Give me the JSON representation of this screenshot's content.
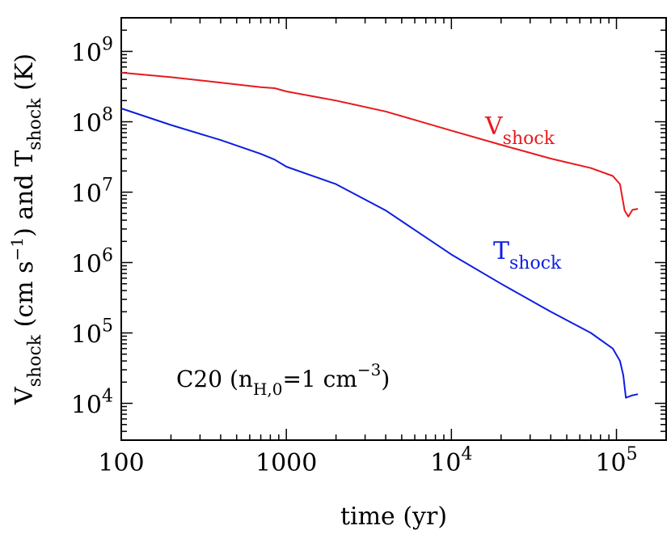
{
  "chart_data": {
    "type": "line",
    "xscale": "log",
    "yscale": "log",
    "xlim": [
      100,
      200000
    ],
    "ylim": [
      3000,
      3000000000
    ],
    "xlabel": "time (yr)",
    "ylabel": {
      "v_symbol": "V",
      "shock_sub": "shock",
      "units": "(cm s",
      "units_exp": "−1",
      "mid": ") and T",
      "t_sub": "shock",
      "tail": "(K)"
    },
    "x_ticks": [
      {
        "value": 100,
        "label": "100"
      },
      {
        "value": 1000,
        "label": "1000"
      },
      {
        "value": 10000,
        "base": "10",
        "exp": "4"
      },
      {
        "value": 100000,
        "base": "10",
        "exp": "5"
      }
    ],
    "y_ticks": [
      {
        "value": 10000,
        "base": "10",
        "exp": "4"
      },
      {
        "value": 100000,
        "base": "10",
        "exp": "5"
      },
      {
        "value": 1000000,
        "base": "10",
        "exp": "6"
      },
      {
        "value": 10000000,
        "base": "10",
        "exp": "7"
      },
      {
        "value": 100000000,
        "base": "10",
        "exp": "8"
      },
      {
        "value": 1000000000,
        "base": "10",
        "exp": "9"
      }
    ],
    "annotation": {
      "model": "C20",
      "open": "(n",
      "sub": "H,0",
      "eq": "=1 cm",
      "exp": "−3",
      "close": ")"
    },
    "series": [
      {
        "name": "V",
        "name_sub": "shock",
        "color": "#e8191c",
        "points": [
          [
            100,
            500000000
          ],
          [
            200,
            430000000
          ],
          [
            400,
            360000000
          ],
          [
            700,
            310000000
          ],
          [
            850,
            300000000
          ],
          [
            1000,
            270000000
          ],
          [
            2000,
            200000000
          ],
          [
            4000,
            140000000
          ],
          [
            10000,
            75000000
          ],
          [
            20000,
            47000000
          ],
          [
            40000,
            30000000
          ],
          [
            70000,
            22000000
          ],
          [
            95000,
            17000000
          ],
          [
            105000,
            13000000
          ],
          [
            112000,
            5500000
          ],
          [
            118000,
            4500000
          ],
          [
            125000,
            5600000
          ],
          [
            135000,
            5800000
          ]
        ]
      },
      {
        "name": "T",
        "name_sub": "shock",
        "color": "#0e1ee0",
        "points": [
          [
            100,
            155000000
          ],
          [
            200,
            90000000
          ],
          [
            400,
            55000000
          ],
          [
            700,
            35000000
          ],
          [
            850,
            29000000
          ],
          [
            1000,
            23000000
          ],
          [
            2000,
            13000000
          ],
          [
            4000,
            5500000
          ],
          [
            10000,
            1300000
          ],
          [
            20000,
            500000
          ],
          [
            40000,
            200000
          ],
          [
            70000,
            100000
          ],
          [
            95000,
            60000
          ],
          [
            105000,
            40000
          ],
          [
            110000,
            25000
          ],
          [
            114000,
            12000
          ],
          [
            125000,
            13000
          ],
          [
            135000,
            13500
          ]
        ]
      }
    ]
  }
}
